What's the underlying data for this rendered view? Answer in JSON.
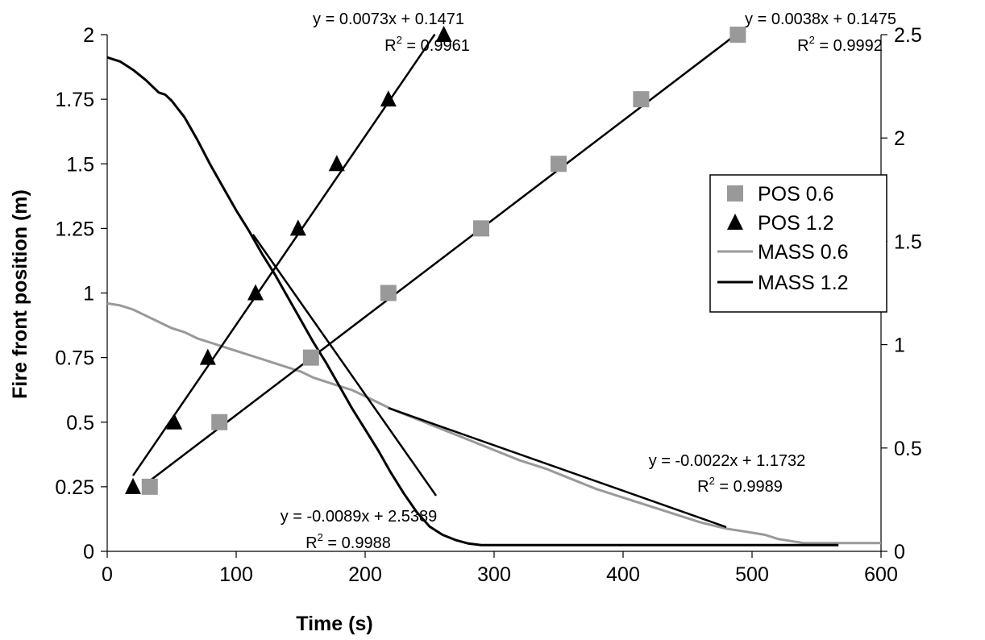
{
  "chart_data": {
    "type": "scatter",
    "xlabel": "Time (s)",
    "ylabel": "Fire front position (m)",
    "xlim": [
      0,
      600
    ],
    "ylim": [
      0,
      2
    ],
    "y2lim": [
      0,
      2.5
    ],
    "x_ticks": [
      0,
      100,
      200,
      300,
      400,
      500,
      600
    ],
    "x_tick_labels": [
      "0",
      "100",
      "200",
      "300",
      "400",
      "500",
      "600"
    ],
    "y_ticks": [
      0,
      0.25,
      0.5,
      0.75,
      1,
      1.25,
      1.5,
      1.75,
      2
    ],
    "y_tick_labels": [
      "0",
      "0.25",
      "0.5",
      "0.75",
      "1",
      "1.25",
      "1.5",
      "1.75",
      "2"
    ],
    "y2_ticks": [
      0,
      0.5,
      1,
      1.5,
      2,
      2.5
    ],
    "y2_tick_labels": [
      "0",
      "0.5",
      "1",
      "1.5",
      "2",
      "2.5"
    ],
    "grid": false,
    "legend_position": "right",
    "colors": {
      "gray": "#999999",
      "black": "#000000"
    },
    "series": [
      {
        "name": "POS 0.6",
        "axis": "left",
        "marker": "square",
        "color": "#999999",
        "x": [
          33,
          87,
          158,
          290,
          350,
          414,
          489
        ],
        "y": [
          0.25,
          0.5,
          0.75,
          1.25,
          1.5,
          1.75,
          2.0
        ],
        "extra_points": [
          [
            218,
            1.0
          ]
        ]
      },
      {
        "name": "POS 1.2",
        "axis": "left",
        "marker": "triangle",
        "color": "#000000",
        "x": [
          20,
          52,
          78,
          115,
          148,
          178,
          218,
          261
        ],
        "y": [
          0.25,
          0.5,
          0.75,
          1.0,
          1.25,
          1.5,
          1.75,
          2.0
        ]
      },
      {
        "name": "MASS 0.6",
        "axis": "right",
        "line": true,
        "color": "#999999",
        "x": [
          0,
          10,
          20,
          30,
          40,
          50,
          60,
          70,
          80,
          90,
          100,
          110,
          120,
          130,
          140,
          150,
          160,
          170,
          180,
          190,
          200,
          210,
          220,
          240,
          260,
          280,
          300,
          320,
          340,
          360,
          380,
          400,
          420,
          440,
          460,
          480,
          500,
          510,
          520,
          530,
          540,
          560,
          580,
          600
        ],
        "y": [
          1.2,
          1.19,
          1.17,
          1.14,
          1.11,
          1.08,
          1.06,
          1.03,
          1.01,
          0.99,
          0.97,
          0.95,
          0.93,
          0.91,
          0.89,
          0.87,
          0.84,
          0.82,
          0.8,
          0.78,
          0.75,
          0.72,
          0.69,
          0.64,
          0.59,
          0.54,
          0.49,
          0.44,
          0.4,
          0.35,
          0.3,
          0.26,
          0.22,
          0.18,
          0.14,
          0.11,
          0.09,
          0.08,
          0.06,
          0.05,
          0.04,
          0.04,
          0.04,
          0.04
        ]
      },
      {
        "name": "MASS 1.2",
        "axis": "right",
        "line": true,
        "color": "#000000",
        "x": [
          0,
          10,
          20,
          30,
          40,
          45,
          50,
          60,
          70,
          80,
          90,
          100,
          110,
          120,
          130,
          140,
          150,
          160,
          170,
          180,
          190,
          200,
          210,
          220,
          230,
          240,
          250,
          260,
          270,
          280,
          290,
          300,
          310,
          320,
          400,
          500,
          567
        ],
        "y": [
          2.39,
          2.37,
          2.33,
          2.28,
          2.22,
          2.21,
          2.18,
          2.1,
          1.99,
          1.87,
          1.76,
          1.65,
          1.55,
          1.44,
          1.34,
          1.23,
          1.12,
          1.01,
          0.91,
          0.8,
          0.69,
          0.59,
          0.49,
          0.38,
          0.28,
          0.19,
          0.12,
          0.08,
          0.055,
          0.038,
          0.03,
          0.03,
          0.03,
          0.03,
          0.03,
          0.03,
          0.03
        ]
      }
    ],
    "trendlines": [
      {
        "series": "POS 0.6",
        "axis": "left",
        "slope": 0.0038,
        "intercept": 0.1475,
        "x_range": [
          33,
          489
        ],
        "equation": "y = 0.0038x + 0.1475",
        "r2_value": "= 0.9992"
      },
      {
        "series": "POS 1.2",
        "axis": "left",
        "slope": 0.0073,
        "intercept": 0.1471,
        "x_range": [
          20,
          254
        ],
        "equation": "y = 0.0073x + 0.1471",
        "r2_value": "= 0.9961"
      },
      {
        "series": "MASS 0.6",
        "axis": "right",
        "slope": -0.0022,
        "intercept": 1.1732,
        "x_range": [
          218,
          480
        ],
        "equation": "y = -0.0022x + 1.1732",
        "r2_value": "= 0.9989"
      },
      {
        "series": "MASS 1.2",
        "axis": "right",
        "slope": -0.0089,
        "intercept": 2.5389,
        "x_range": [
          113,
          255
        ],
        "equation": "y = -0.0089x + 2.5389",
        "r2_value": "= 0.9988"
      }
    ],
    "r2_prefix": "R",
    "r2_sup": "2"
  }
}
